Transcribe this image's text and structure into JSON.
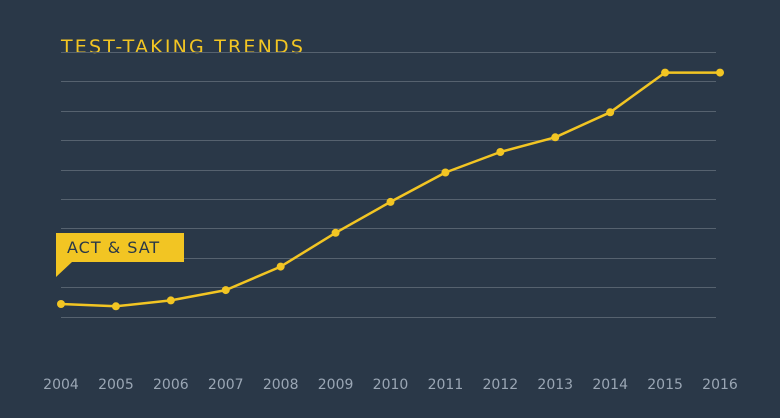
{
  "colors": {
    "background": "#2a3848",
    "accent": "#f2c523",
    "gridline": "#56626f",
    "tick_label": "#9aa6b4"
  },
  "chart_data": {
    "type": "line",
    "title": "TEST-TAKING TRENDS",
    "xlabel": "",
    "ylabel": "",
    "categories": [
      "2004",
      "2005",
      "2006",
      "2007",
      "2008",
      "2009",
      "2010",
      "2011",
      "2012",
      "2013",
      "2014",
      "2015",
      "2016"
    ],
    "y_tick_labels_shown": false,
    "ylim": [
      0,
      10
    ],
    "gridlines": 10,
    "series": [
      {
        "name": "ACT & SAT",
        "values": [
          1.43,
          1.35,
          1.55,
          1.9,
          2.7,
          3.85,
          4.9,
          5.9,
          6.6,
          7.1,
          7.95,
          9.3,
          9.3
        ]
      }
    ],
    "legend_placement": "left callout"
  }
}
